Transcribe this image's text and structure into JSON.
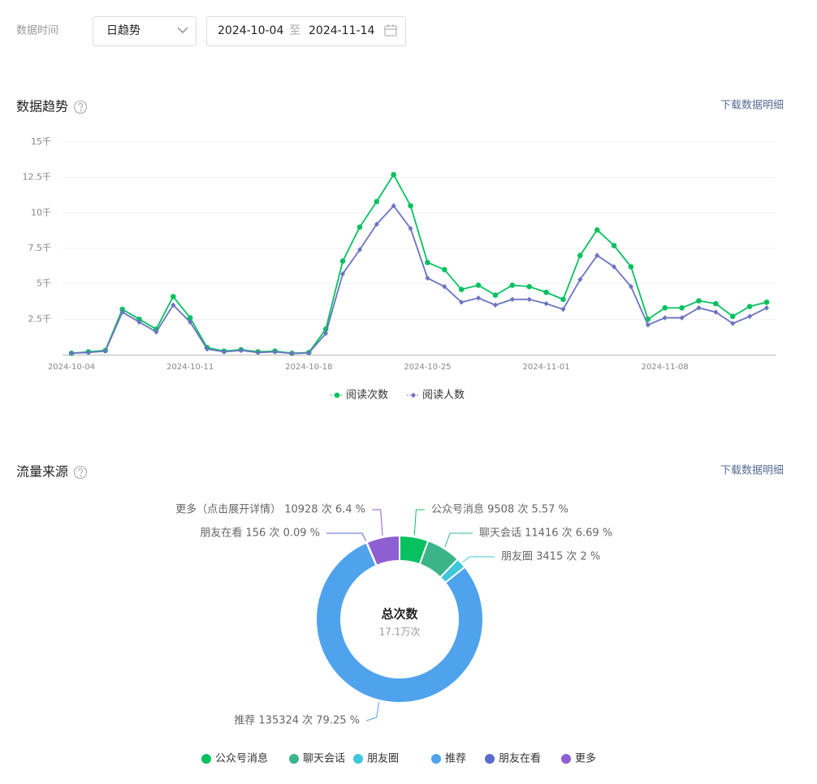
{
  "filters": {
    "label": "数据时间",
    "granularity": "日趋势",
    "start_date": "2024-10-04",
    "separator": "至",
    "end_date": "2024-11-14"
  },
  "sections": [
    {
      "title": "数据趋势",
      "action": "下载数据明细"
    },
    {
      "title": "流量来源",
      "action": "下载数据明细"
    }
  ],
  "chart_data": [
    {
      "type": "line",
      "categories": [
        "2024-10-04",
        null,
        null,
        null,
        null,
        null,
        null,
        "2024-10-11",
        null,
        null,
        null,
        null,
        null,
        null,
        "2024-10-18",
        null,
        null,
        null,
        null,
        null,
        null,
        "2024-10-25",
        null,
        null,
        null,
        null,
        null,
        null,
        "2024-11-01",
        null,
        null,
        null,
        null,
        null,
        null,
        "2024-11-08",
        null,
        null,
        null,
        null,
        null,
        null
      ],
      "series": [
        {
          "name": "阅读次数",
          "color": "#07c160",
          "values": [
            100,
            200,
            300,
            3200,
            2500,
            1800,
            4100,
            2600,
            500,
            250,
            350,
            200,
            250,
            100,
            150,
            1800,
            6600,
            9000,
            10800,
            12700,
            10500,
            6500,
            6000,
            4600,
            4900,
            4200,
            4900,
            4800,
            4400,
            3900,
            7000,
            8800,
            7700,
            6200,
            2500,
            3300,
            3300,
            3800,
            3600,
            2700,
            3400,
            3700
          ]
        },
        {
          "name": "阅读人数",
          "color": "#6c74c2",
          "values": [
            100,
            150,
            250,
            3000,
            2300,
            1600,
            3500,
            2300,
            400,
            200,
            300,
            150,
            200,
            80,
            120,
            1500,
            5700,
            7400,
            9200,
            10500,
            8900,
            5400,
            4800,
            3700,
            4000,
            3500,
            3900,
            3900,
            3600,
            3200,
            5300,
            7000,
            6200,
            4800,
            2100,
            2600,
            2600,
            3300,
            3000,
            2200,
            2700,
            3300
          ]
        }
      ],
      "ylim": [
        0,
        15000
      ],
      "yticks": [
        {
          "value": 2500,
          "label": "2.5千"
        },
        {
          "value": 5000,
          "label": "5千"
        },
        {
          "value": 7500,
          "label": "7.5千"
        },
        {
          "value": 10000,
          "label": "10千"
        },
        {
          "value": 12500,
          "label": "12.5千"
        },
        {
          "value": 15000,
          "label": "15千"
        }
      ],
      "grid": true,
      "legend": "bottom"
    },
    {
      "type": "pie",
      "center_title": "总次数",
      "center_value": "17.1万次",
      "categories": [
        "公众号消息",
        "聊天会话",
        "朋友圈",
        "推荐",
        "朋友在看",
        "更多"
      ],
      "values": [
        9508,
        11416,
        3415,
        135324,
        156,
        10928
      ],
      "value_labels": [
        "公众号消息 9508 次 5.57 %",
        "聊天会话 11416 次 6.69 %",
        "朋友圈 3415 次 2 %",
        "推荐 135324 次 79.25 %",
        "朋友在看 156 次 0.09 %",
        "更多（点击展开详情） 10928 次 6.4 %"
      ],
      "colors": [
        "#07c160",
        "#3cb48a",
        "#40c8da",
        "#4fa3ec",
        "#5b6bd0",
        "#8e5fd3"
      ],
      "legend": "bottom"
    }
  ]
}
